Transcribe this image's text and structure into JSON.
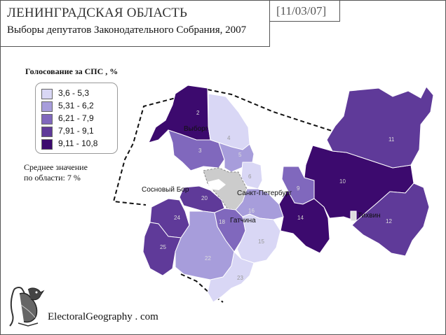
{
  "header": {
    "title": "ЛЕНИНГРАДСКАЯ ОБЛАСТЬ",
    "subtitle": "Выборы депутатов Законодательного Собрания, 2007",
    "date": "[11/03/07]"
  },
  "legend": {
    "title": "Голосование за СПС , %",
    "items": [
      {
        "label": "3,6 - 5,3",
        "color": "#d9d7f5"
      },
      {
        "label": "5,31 - 6,2",
        "color": "#a79ddb"
      },
      {
        "label": "6,21 - 7,9",
        "color": "#8068bd"
      },
      {
        "label": "7,91 - 9,1",
        "color": "#5f3a99"
      },
      {
        "label": "9,11 - 10,8",
        "color": "#3c0a6e"
      }
    ]
  },
  "average": {
    "line1": "Среднее значение",
    "line2": "по области: 7 %"
  },
  "cities": {
    "vyborg": "Выборг",
    "sosnovy_bor": "Сосновый Бор",
    "spb": "Санкт-Петербург",
    "gatchina": "Гатчина",
    "tikhvin": "Тихвин"
  },
  "districts": {
    "d2": "2",
    "d3": "3",
    "d4": "4",
    "d5": "5",
    "d6": "6",
    "d9": "9",
    "d10": "10",
    "d11": "11",
    "d12": "12",
    "d14": "14",
    "d15": "15",
    "d16": "16",
    "d18": "18",
    "d20": "20",
    "d22": "22",
    "d23": "23",
    "d24": "24",
    "d25": "25"
  },
  "brand": "ElectoralGeography . com"
}
